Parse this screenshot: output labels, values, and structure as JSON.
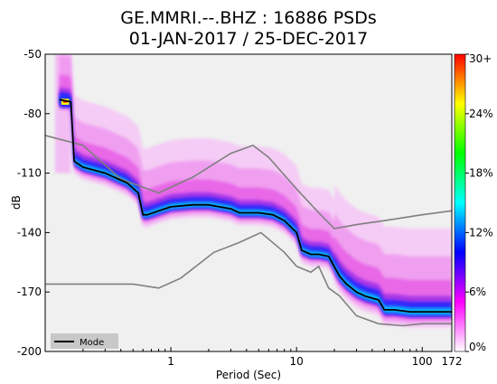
{
  "chart_data": {
    "type": "heatmap",
    "title": "GE.MMRI.--.BHZ : 16886 PSDs",
    "subtitle": "01-JAN-2017 / 25-DEC-2017",
    "xlabel": "Period (Sec)",
    "ylabel": "dB",
    "x_scale": "log",
    "xlim": [
      0.1,
      172
    ],
    "ylim": [
      -200,
      -50
    ],
    "x_ticks": [
      {
        "value": 1,
        "label": "1"
      },
      {
        "value": 10,
        "label": "10"
      },
      {
        "value": 100,
        "label": "100"
      },
      {
        "value": 172,
        "label": "172"
      }
    ],
    "y_ticks": [
      {
        "value": -50,
        "label": "-50"
      },
      {
        "value": -80,
        "label": "-80"
      },
      {
        "value": -110,
        "label": "-110"
      },
      {
        "value": -140,
        "label": "-140"
      },
      {
        "value": -170,
        "label": "-170"
      },
      {
        "value": -200,
        "label": "-200"
      }
    ],
    "colorbar": {
      "min": 0,
      "max": 30,
      "ticks": [
        "0%",
        "6%",
        "12%",
        "18%",
        "24%",
        "30+"
      ],
      "colors": [
        "#ffffff",
        "#ff00ff",
        "#0000ff",
        "#00ffff",
        "#00ff00",
        "#ffff00",
        "#ff0000"
      ]
    },
    "legend": {
      "placement": "bottom-left",
      "entries": [
        "Mode"
      ]
    },
    "mode": {
      "x": [
        0.13,
        0.16,
        0.17,
        0.2,
        0.3,
        0.45,
        0.55,
        0.6,
        0.65,
        0.8,
        1.0,
        1.5,
        2.0,
        3.0,
        3.5,
        5.0,
        6.5,
        8.0,
        10,
        11,
        13,
        15,
        18,
        22,
        25,
        30,
        35,
        45,
        50,
        60,
        80,
        100,
        130,
        172
      ],
      "y": [
        -73,
        -74,
        -104,
        -107,
        -110,
        -115,
        -120,
        -131,
        -131,
        -129,
        -127,
        -126,
        -126,
        -128,
        -130,
        -130,
        -131,
        -134,
        -140,
        -149,
        -151,
        -151,
        -152,
        -162,
        -166,
        -170,
        -172,
        -174,
        -179,
        -179,
        -180,
        -180,
        -180,
        -180
      ]
    },
    "nlnm": {
      "x": [
        0.1,
        0.2,
        0.5,
        0.8,
        1.2,
        2.2,
        3.5,
        5.2,
        8,
        10,
        13,
        15,
        18,
        22,
        30,
        45,
        70,
        100,
        172
      ],
      "y": [
        -166,
        -166,
        -166,
        -168,
        -163,
        -150,
        -145,
        -140,
        -150,
        -157,
        -160,
        -157,
        -168,
        -172,
        -182,
        -186,
        -187,
        -186,
        -186
      ]
    },
    "nhnm": {
      "x": [
        0.1,
        0.2,
        0.4,
        0.8,
        1.5,
        3.0,
        4.5,
        6.0,
        10,
        15,
        20,
        30,
        50,
        100,
        172
      ],
      "y": [
        -91,
        -96,
        -113,
        -120,
        -112,
        -100,
        -96,
        -102,
        -118,
        -130,
        -138,
        -136,
        -134,
        -131,
        -129
      ]
    },
    "colors": {
      "mode": "#000000",
      "models": "#7f7f7f",
      "background": "#f0f0f0"
    }
  }
}
